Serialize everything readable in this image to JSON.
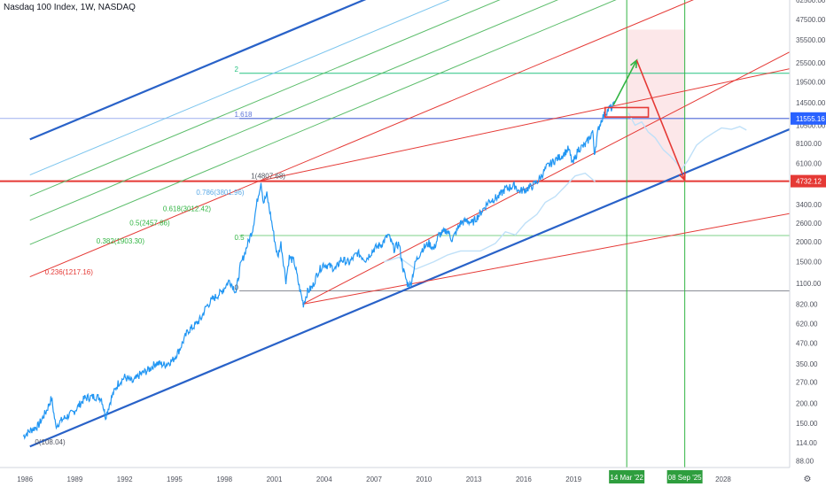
{
  "header": {
    "title": "Nasdaq 100 Index, 1W, NASDAQ"
  },
  "colors": {
    "price": "#2196f3",
    "trend_channel": "#2962c8",
    "fib_2": "#26c281",
    "fib_1618": "#5b73d9",
    "red": "#e53935",
    "green_line": "#33b544",
    "light_blue": "#7cc5ee",
    "axis_text": "#50535e"
  },
  "chart_data": {
    "type": "line",
    "title": "Nasdaq 100 Index, 1W, NASDAQ",
    "y_scale": "log",
    "ylim": [
      80,
      62500
    ],
    "xlim": [
      1984.5,
      2032.0
    ],
    "y_ticks": [
      "62500.00",
      "47500.00",
      "35500.00",
      "25500.00",
      "19500.00",
      "14500.00",
      "10500.00",
      "8100.00",
      "6100.00",
      "3400.00",
      "2600.00",
      "2000.00",
      "1500.00",
      "1100.00",
      "820.00",
      "620.00",
      "470.00",
      "350.00",
      "270.00",
      "200.00",
      "150.00",
      "114.00",
      "88.00"
    ],
    "y_tick_values": [
      62500,
      47500,
      35500,
      25500,
      19500,
      14500,
      10500,
      8100,
      6100,
      3400,
      2600,
      2000,
      1500,
      1100,
      820,
      620,
      470,
      350,
      270,
      200,
      150,
      114,
      88
    ],
    "x_ticks": [
      "1986",
      "1989",
      "1992",
      "1995",
      "1998",
      "2001",
      "2004",
      "2007",
      "2010",
      "2013",
      "2016",
      "2019",
      "2028"
    ],
    "x_tick_values": [
      1986,
      1989,
      1992,
      1995,
      1998,
      2001,
      2004,
      2007,
      2010,
      2013,
      2016,
      2019,
      2028
    ],
    "price_labels": [
      {
        "text": "11555.16",
        "value": 11555.16,
        "color": "#2962ff"
      },
      {
        "text": "4732.12",
        "value": 4732.12,
        "color": "#e53935"
      }
    ],
    "date_labels": [
      {
        "text": "14 Mar '22",
        "x": 2022.2
      },
      {
        "text": "08 Sep '25",
        "x": 2025.69
      }
    ],
    "fib_labels": [
      {
        "text": "0(108.04)",
        "x": 1986.6,
        "y": 108.04,
        "color": "#50535e"
      },
      {
        "text": "0.236(1217.16)",
        "x": 1987.2,
        "y": 1217.16,
        "color": "#e53935"
      },
      {
        "text": "0.382(1903.30)",
        "x": 1990.3,
        "y": 1903.3,
        "color": "#33b544"
      },
      {
        "text": "0.5(2457.86)",
        "x": 1992.3,
        "y": 2457.86,
        "color": "#33b544"
      },
      {
        "text": "0.618(3012.42)",
        "x": 1994.3,
        "y": 3012.42,
        "color": "#33b544"
      },
      {
        "text": "0.786(3801.96)",
        "x": 1996.3,
        "y": 3801.96,
        "color": "#5aa9e6"
      },
      {
        "text": "1(4807.68)",
        "x": 1999.6,
        "y": 4807.68,
        "color": "#50535e"
      },
      {
        "text": "0.5",
        "x": 1998.6,
        "y": 2000,
        "color": "#33b544"
      },
      {
        "text": "0",
        "x": 1998.6,
        "y": 980,
        "color": "#50535e"
      },
      {
        "text": "1.618",
        "x": 1998.6,
        "y": 11555.16,
        "color": "#5b73d9"
      },
      {
        "text": "2",
        "x": 1998.6,
        "y": 22000,
        "color": "#26c281"
      }
    ],
    "series": [
      {
        "name": "",
        "color": "#2196f3",
        "values": [
          [
            1985.9,
            125
          ],
          [
            1986.3,
            135
          ],
          [
            1986.8,
            145
          ],
          [
            1987.3,
            180
          ],
          [
            1987.6,
            215
          ],
          [
            1987.85,
            145
          ],
          [
            1988.3,
            160
          ],
          [
            1988.9,
            175
          ],
          [
            1989.6,
            215
          ],
          [
            1990.2,
            220
          ],
          [
            1990.6,
            215
          ],
          [
            1990.85,
            165
          ],
          [
            1991.2,
            215
          ],
          [
            1991.6,
            265
          ],
          [
            1992.0,
            290
          ],
          [
            1992.5,
            270
          ],
          [
            1992.9,
            300
          ],
          [
            1993.4,
            320
          ],
          [
            1993.9,
            355
          ],
          [
            1994.4,
            345
          ],
          [
            1994.9,
            370
          ],
          [
            1995.3,
            430
          ],
          [
            1995.8,
            560
          ],
          [
            1996.1,
            590
          ],
          [
            1996.6,
            670
          ],
          [
            1996.9,
            790
          ],
          [
            1997.3,
            880
          ],
          [
            1997.8,
            970
          ],
          [
            1998.3,
            1150
          ],
          [
            1998.7,
            980
          ],
          [
            1998.95,
            1400
          ],
          [
            1999.3,
            1800
          ],
          [
            1999.7,
            2400
          ],
          [
            2000.0,
            3700
          ],
          [
            2000.2,
            4704
          ],
          [
            2000.35,
            3500
          ],
          [
            2000.55,
            3900
          ],
          [
            2000.8,
            2800
          ],
          [
            2001.0,
            2100
          ],
          [
            2001.2,
            1600
          ],
          [
            2001.4,
            1950
          ],
          [
            2001.7,
            1150
          ],
          [
            2001.9,
            1600
          ],
          [
            2002.2,
            1500
          ],
          [
            2002.5,
            1050
          ],
          [
            2002.75,
            820
          ],
          [
            2003.0,
            980
          ],
          [
            2003.3,
            1050
          ],
          [
            2003.6,
            1280
          ],
          [
            2003.95,
            1450
          ],
          [
            2004.4,
            1400
          ],
          [
            2004.7,
            1350
          ],
          [
            2005.0,
            1550
          ],
          [
            2005.5,
            1480
          ],
          [
            2006.0,
            1700
          ],
          [
            2006.5,
            1550
          ],
          [
            2007.0,
            1800
          ],
          [
            2007.5,
            1950
          ],
          [
            2007.85,
            2200
          ],
          [
            2008.2,
            1800
          ],
          [
            2008.5,
            1950
          ],
          [
            2008.75,
            1350
          ],
          [
            2009.0,
            1100
          ],
          [
            2009.2,
            1080
          ],
          [
            2009.5,
            1500
          ],
          [
            2009.9,
            1800
          ],
          [
            2010.3,
            1950
          ],
          [
            2010.6,
            1800
          ],
          [
            2010.9,
            2200
          ],
          [
            2011.4,
            2350
          ],
          [
            2011.7,
            2050
          ],
          [
            2012.2,
            2600
          ],
          [
            2012.6,
            2700
          ],
          [
            2012.9,
            2600
          ],
          [
            2013.4,
            3000
          ],
          [
            2013.9,
            3550
          ],
          [
            2014.5,
            3800
          ],
          [
            2014.9,
            4250
          ],
          [
            2015.5,
            4450
          ],
          [
            2015.7,
            4100
          ],
          [
            2016.1,
            4200
          ],
          [
            2016.5,
            4400
          ],
          [
            2016.9,
            4800
          ],
          [
            2017.4,
            5800
          ],
          [
            2017.9,
            6400
          ],
          [
            2018.3,
            6800
          ],
          [
            2018.7,
            7500
          ],
          [
            2018.95,
            6000
          ],
          [
            2019.3,
            7500
          ],
          [
            2019.7,
            7900
          ],
          [
            2019.95,
            8700
          ],
          [
            2020.15,
            9700
          ],
          [
            2020.25,
            7000
          ],
          [
            2020.5,
            10000
          ],
          [
            2020.7,
            11500
          ],
          [
            2021.0,
            12800
          ],
          [
            2021.2,
            13500
          ],
          [
            2021.35,
            13300
          ],
          [
            2021.45,
            14800
          ]
        ]
      }
    ]
  }
}
